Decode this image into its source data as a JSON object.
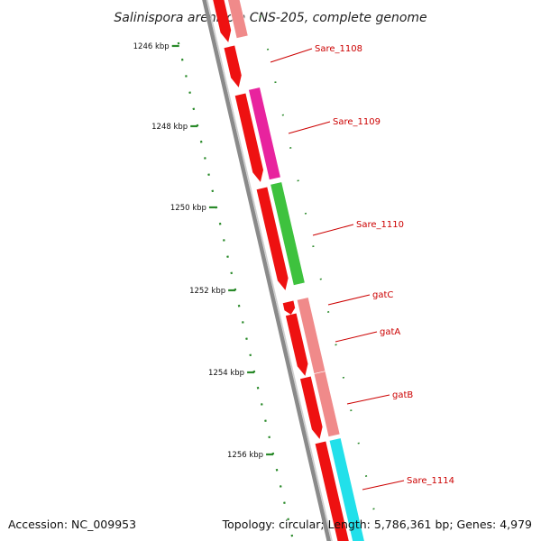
{
  "title": "Salinispora arenicola CNS-205, complete genome",
  "footer": {
    "accession": "Accession: NC_009953",
    "summary": "Topology: circular; Length: 5,786,361 bp; Genes: 4,979"
  },
  "scale": {
    "labels": [
      "1246 kbp",
      "1248 kbp",
      "1250 kbp",
      "1252 kbp",
      "1254 kbp",
      "1256 kbp"
    ],
    "color": "#2a8a2a"
  },
  "backbone_color": "#8a8a8a",
  "genes": [
    {
      "name": "Sare_1108",
      "color": "#f08a8a"
    },
    {
      "name": "Sare_1109",
      "color": "#e8239e"
    },
    {
      "name": "Sare_1110",
      "color": "#3ec23e"
    },
    {
      "name": "gatC",
      "color": "#f08a8a"
    },
    {
      "name": "gatA",
      "color": "#f08a8a"
    },
    {
      "name": "gatB",
      "color": "#f08a8a"
    },
    {
      "name": "Sare_1114",
      "color": "#22e0ea"
    }
  ],
  "cds_color": "#ee1111",
  "label_color": "#cc0000"
}
